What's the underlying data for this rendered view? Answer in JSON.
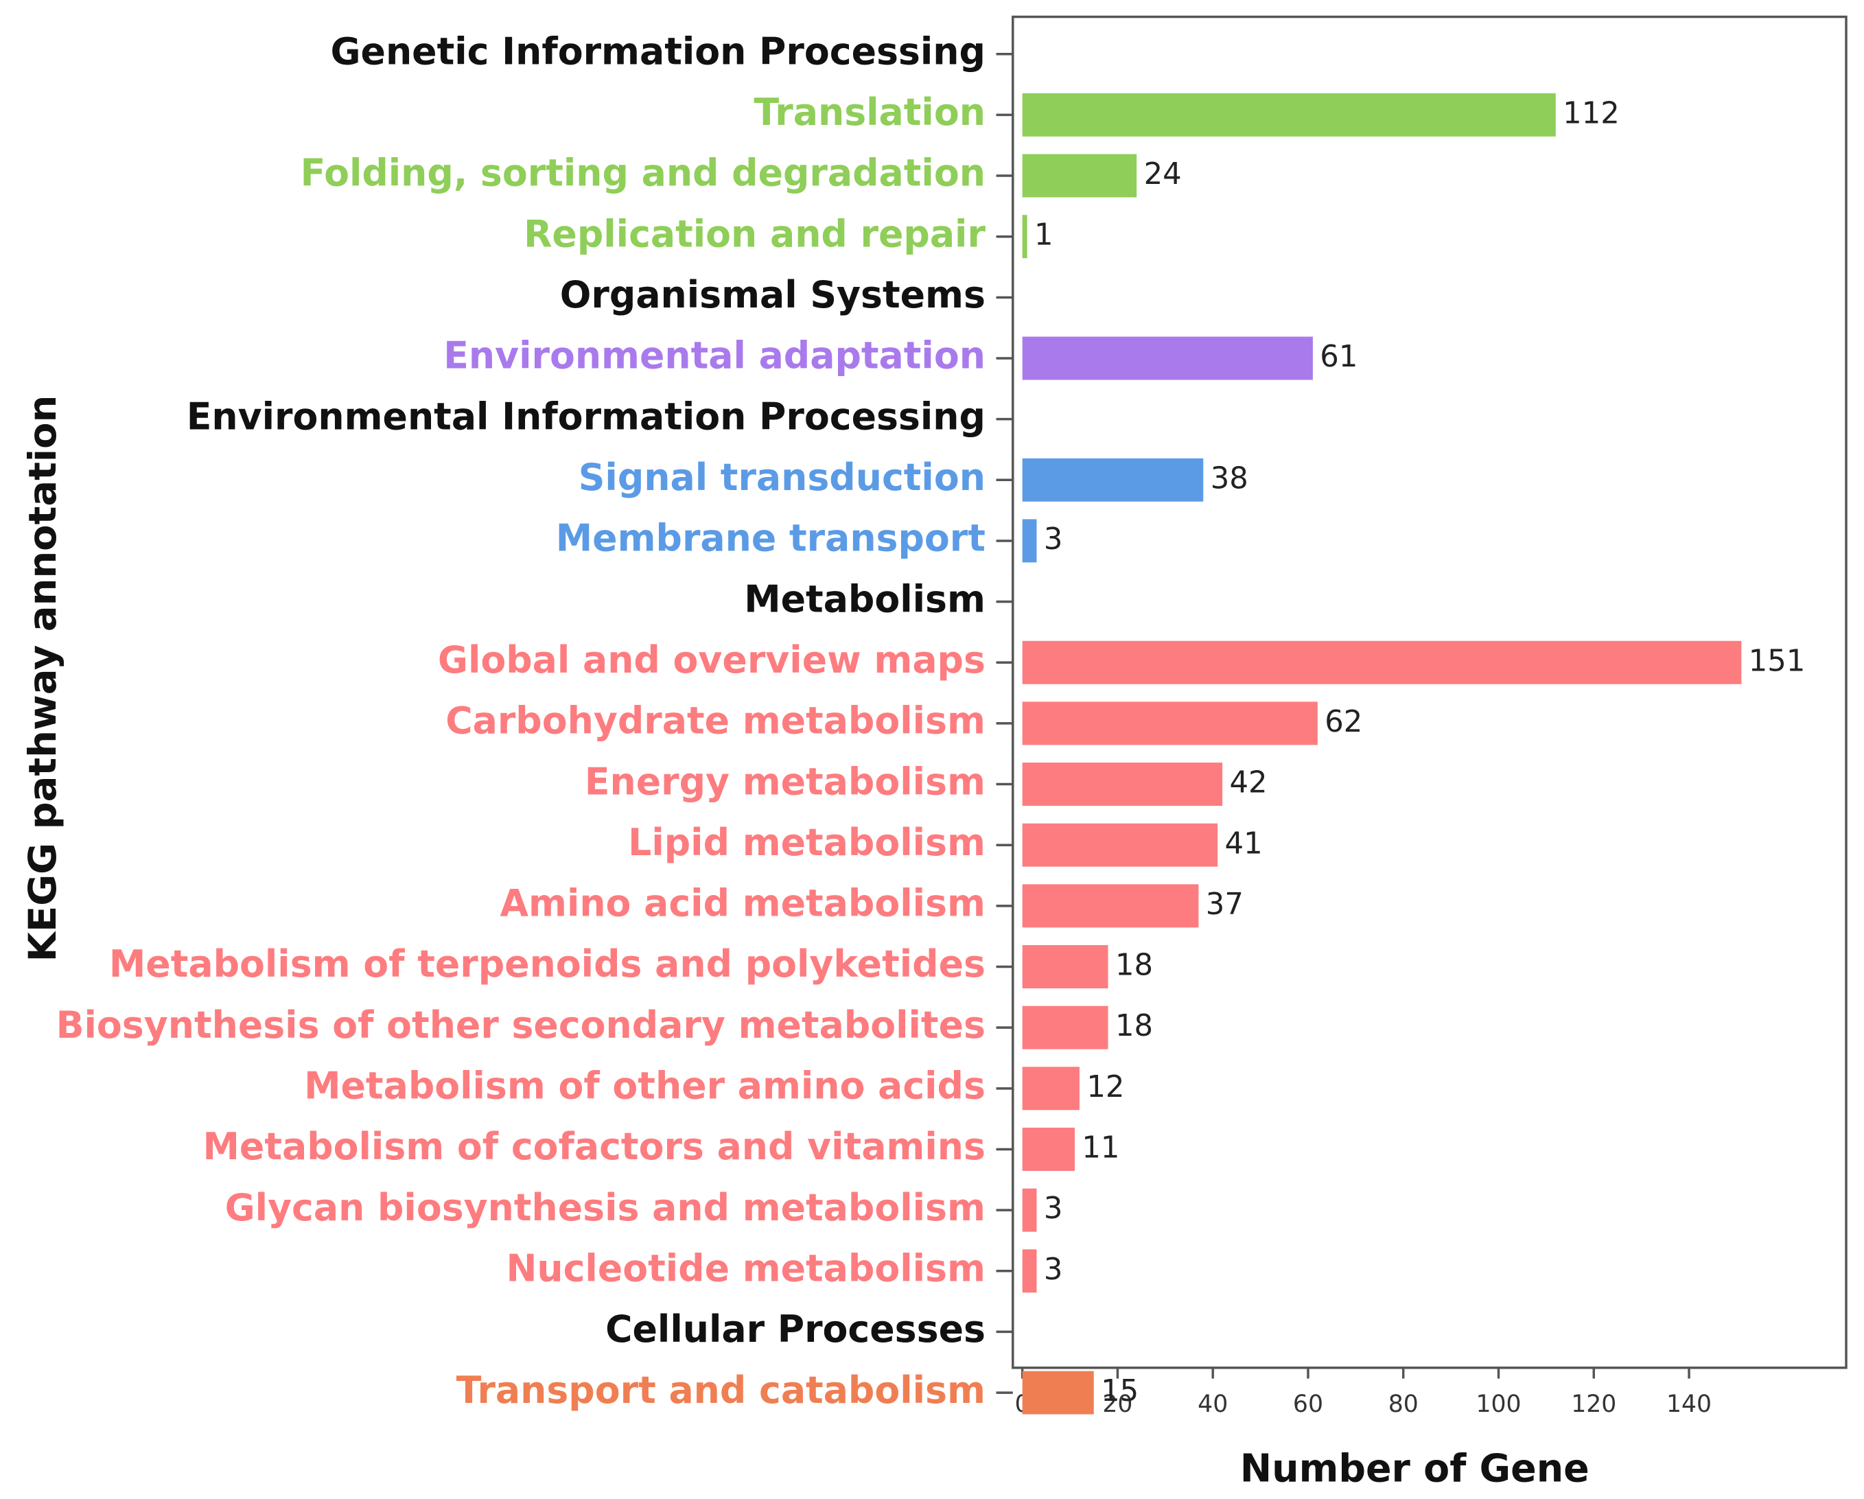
{
  "chart_data": {
    "type": "bar",
    "orientation": "horizontal",
    "categories": [
      "Genetic Information Processing",
      "Translation",
      "Folding, sorting and degradation",
      "Replication and repair",
      "Organismal Systems",
      "Environmental adaptation",
      "Environmental Information Processing",
      "Signal transduction",
      "Membrane transport",
      "Metabolism",
      "Global and overview maps",
      "Carbohydrate metabolism",
      "Energy metabolism",
      "Lipid metabolism",
      "Amino acid metabolism",
      "Metabolism of terpenoids and polyketides",
      "Biosynthesis of other secondary metabolites",
      "Metabolism of other amino acids",
      "Metabolism of cofactors and vitamins",
      "Glycan biosynthesis and metabolism",
      "Nucleotide metabolism",
      "Cellular Processes",
      "Transport and catabolism"
    ],
    "values": [
      null,
      112,
      24,
      1,
      null,
      61,
      null,
      38,
      3,
      null,
      151,
      62,
      42,
      41,
      37,
      18,
      18,
      12,
      11,
      3,
      3,
      null,
      15
    ],
    "colors": [
      "#111111",
      "#8fce58",
      "#8fce58",
      "#8fce58",
      "#111111",
      "#a97aec",
      "#111111",
      "#5b9be6",
      "#5b9be6",
      "#111111",
      "#fd7c7f",
      "#fd7c7f",
      "#fd7c7f",
      "#fd7c7f",
      "#fd7c7f",
      "#fd7c7f",
      "#fd7c7f",
      "#fd7c7f",
      "#fd7c7f",
      "#fd7c7f",
      "#fd7c7f",
      "#111111",
      "#ef7f52"
    ],
    "xlabel": "Number of Gene",
    "ylabel": "KEGG pathway annotation",
    "xlim": [
      -2,
      173
    ],
    "xticks": [
      0,
      20,
      40,
      60,
      80,
      100,
      120,
      140
    ]
  }
}
